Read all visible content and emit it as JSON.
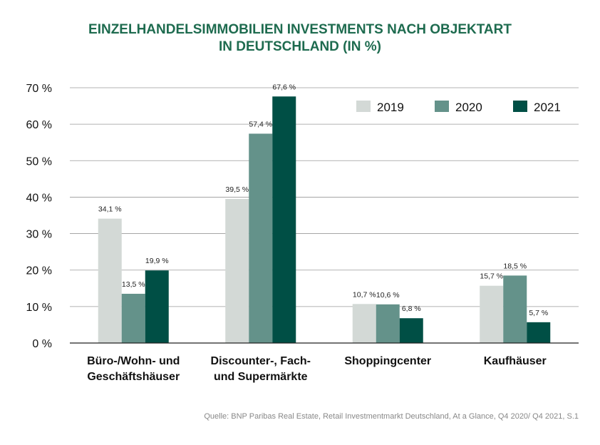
{
  "title": {
    "line1": "EINZELHANDELSIMMOBILIEN INVESTMENTS NACH OBJEKTART",
    "line2": "IN DEUTSCHLAND (IN %)"
  },
  "source": "Quelle: BNP Paribas Real Estate, Retail Investmentmarkt Deutschland, At a Glance, Q4 2020/ Q4 2021, S.1",
  "colors": {
    "2019": "#d3d9d6",
    "2020": "#64928a",
    "2021": "#004f45",
    "title": "#1e6b4f"
  },
  "chart_data": {
    "type": "bar",
    "categories": [
      [
        "Büro-/Wohn- und",
        "Geschäftshäuser"
      ],
      [
        "Discounter-, Fach-",
        "und Supermärkte"
      ],
      [
        "Shoppingcenter"
      ],
      [
        "Kaufhäuser"
      ]
    ],
    "series": [
      {
        "name": "2019",
        "values": [
          34.1,
          39.5,
          10.7,
          15.7
        ],
        "labels": [
          "34,1 %",
          "39,5 %",
          "10,7 %",
          "15,7 %"
        ]
      },
      {
        "name": "2020",
        "values": [
          13.5,
          57.4,
          10.6,
          18.5
        ],
        "labels": [
          "13,5 %",
          "57,4 %",
          "10,6 %",
          "18,5 %"
        ]
      },
      {
        "name": "2021",
        "values": [
          19.9,
          67.6,
          6.8,
          5.7
        ],
        "labels": [
          "19,9 %",
          "67,6 %",
          "6,8 %",
          "5,7 %"
        ]
      }
    ],
    "yticks": [
      {
        "v": 0,
        "label": "0 %"
      },
      {
        "v": 10,
        "label": "10 %"
      },
      {
        "v": 20,
        "label": "20 %"
      },
      {
        "v": 30,
        "label": "30 %"
      },
      {
        "v": 40,
        "label": "40 %"
      },
      {
        "v": 50,
        "label": "50 %"
      },
      {
        "v": 60,
        "label": "60 %"
      },
      {
        "v": 70,
        "label": "70 %"
      }
    ],
    "ylim": [
      0,
      70
    ],
    "grid": true,
    "legend_position": "top-right"
  }
}
